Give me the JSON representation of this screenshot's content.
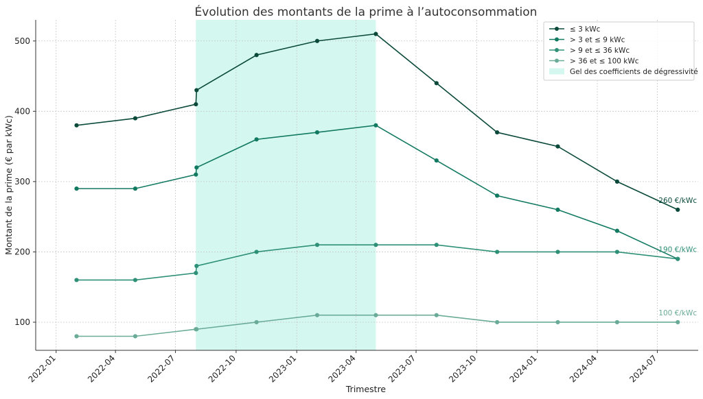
{
  "chart_data": {
    "type": "line",
    "title": "Évolution des montants de la prime à l’autoconsommation",
    "xlabel": "Trimestre",
    "ylabel": "Montant de la prime (€ par kWc)",
    "x_ticks": [
      "2022-01",
      "2022-04",
      "2022-07",
      "2022-10",
      "2023-01",
      "2023-04",
      "2023-07",
      "2023-10",
      "2024-01",
      "2024-04",
      "2024-07"
    ],
    "y_ticks": [
      100,
      200,
      300,
      400,
      500
    ],
    "ylim": [
      60,
      530
    ],
    "xlim": [
      "2021-12-01",
      "2024-09-01"
    ],
    "grid": true,
    "legend_position": "top-right",
    "x": [
      "2022-02-01",
      "2022-05-01",
      "2022-08-01",
      "2022-08-02",
      "2022-11-01",
      "2023-02-01",
      "2023-05-01",
      "2023-08-01",
      "2023-11-01",
      "2024-02-01",
      "2024-05-01",
      "2024-08-01"
    ],
    "series": [
      {
        "name": "≤ 3 kWc",
        "color": "#0b4a3a",
        "values": [
          380,
          390,
          410,
          430,
          480,
          500,
          510,
          440,
          370,
          350,
          300,
          260
        ],
        "end_label": "260 €/kWc"
      },
      {
        "name": "> 3 et ≤ 9 kWc",
        "color": "#137a62",
        "values": [
          290,
          290,
          310,
          320,
          360,
          370,
          380,
          330,
          280,
          260,
          230,
          190
        ],
        "end_label": ""
      },
      {
        "name": "> 9 et ≤ 36 kWc",
        "color": "#2e9077",
        "values": [
          160,
          160,
          170,
          180,
          200,
          210,
          210,
          210,
          200,
          200,
          200,
          190
        ],
        "end_label": "190 €/kWc"
      },
      {
        "name": "> 36 et ≤ 100 kWc",
        "color": "#6aab98",
        "values": [
          80,
          80,
          90,
          90,
          100,
          110,
          110,
          110,
          100,
          100,
          100,
          100
        ],
        "end_label": "100 €/kWc"
      }
    ],
    "shaded_region": {
      "label": "Gel des coefficients de dégressivité",
      "start": "2022-08-01",
      "end": "2023-05-01",
      "color": "#d4f7ef"
    }
  }
}
